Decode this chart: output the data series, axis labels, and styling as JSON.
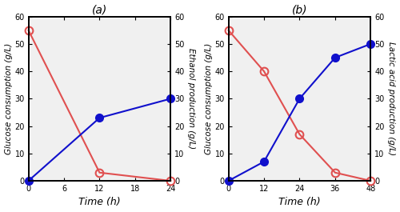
{
  "panel_a": {
    "title": "(a)",
    "time_glucose": [
      0,
      12,
      24
    ],
    "glucose": [
      55,
      3,
      0
    ],
    "time_product": [
      0,
      12,
      24
    ],
    "product": [
      0,
      23,
      30
    ],
    "ylabel_left": "Glucose consumption (g/L)",
    "ylabel_right": "Ethanol production (g/L)",
    "xlabel": "Time (h)",
    "xlim": [
      0,
      24
    ],
    "xticks": [
      0,
      6,
      12,
      18,
      24
    ],
    "ylim": [
      0,
      60
    ],
    "yticks": [
      0,
      10,
      20,
      30,
      40,
      50,
      60
    ]
  },
  "panel_b": {
    "title": "(b)",
    "time_glucose": [
      0,
      12,
      24,
      36,
      48
    ],
    "glucose": [
      55,
      40,
      17,
      3,
      0
    ],
    "time_product": [
      0,
      12,
      24,
      36,
      48
    ],
    "product": [
      0,
      7,
      30,
      45,
      50
    ],
    "ylabel_left": "Glucose consumption (g/L)",
    "ylabel_right": "Lactic acid production (g/L)",
    "xlabel": "Time (h)",
    "xlim": [
      0,
      48
    ],
    "xticks": [
      0,
      12,
      24,
      36,
      48
    ],
    "ylim": [
      0,
      60
    ],
    "yticks": [
      0,
      10,
      20,
      30,
      40,
      50,
      60
    ]
  },
  "color_glucose": "#e05050",
  "color_product": "#1010cc",
  "marker_size": 7,
  "linewidth": 1.5,
  "bg_color": "#f0f0f0",
  "title_fontsize": 10,
  "label_fontsize": 7,
  "axis_label_fontsize": 7.5,
  "xlabel_fontsize": 9
}
